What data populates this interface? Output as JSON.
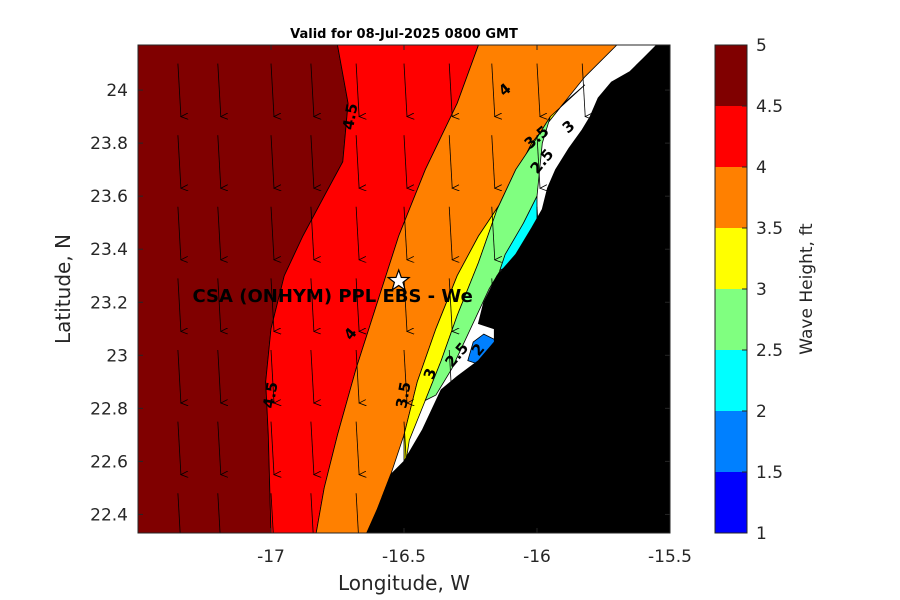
{
  "chart_data": {
    "type": "heatmap",
    "title": "Valid for 08-Jul-2025 0800 GMT",
    "xlabel": "Longitude, W",
    "ylabel": "Latitude, N",
    "xlim": [
      -17.5,
      -15.5
    ],
    "ylim": [
      22.33,
      24.17
    ],
    "x_ticks": [
      -17,
      -16.5,
      -16,
      -15.5
    ],
    "x_tick_labels": [
      "-17",
      "-16.5",
      "-16",
      "-15.5"
    ],
    "y_ticks": [
      22.4,
      22.6,
      22.8,
      23,
      23.2,
      23.4,
      23.6,
      23.8,
      24
    ],
    "y_tick_labels": [
      "22.4",
      "22.6",
      "22.8",
      "23",
      "23.2",
      "23.4",
      "23.6",
      "23.8",
      "24"
    ],
    "colorbar": {
      "label": "Wave Height, ft",
      "ticks": [
        1,
        1.5,
        2,
        2.5,
        3,
        3.5,
        4,
        4.5,
        5
      ],
      "tick_labels": [
        "1",
        "1.5",
        "2",
        "2.5",
        "3",
        "3.5",
        "4",
        "4.5",
        "5"
      ],
      "colors": [
        "#0000ff",
        "#0080ff",
        "#00ffff",
        "#80ff80",
        "#ffff00",
        "#ff8000",
        "#ff0000",
        "#800000"
      ]
    },
    "bands": [
      {
        "range": [
          4.5,
          5.0
        ],
        "color": "#800000",
        "polygon": [
          [
            -17.5,
            22.33
          ],
          [
            -17.5,
            24.17
          ],
          [
            -16.75,
            24.17
          ],
          [
            -16.71,
            23.95
          ],
          [
            -16.73,
            23.73
          ],
          [
            -16.8,
            23.6
          ],
          [
            -16.88,
            23.45
          ],
          [
            -16.95,
            23.3
          ],
          [
            -17.0,
            23.1
          ],
          [
            -17.02,
            22.9
          ],
          [
            -17.01,
            22.7
          ],
          [
            -17.0,
            22.33
          ]
        ]
      },
      {
        "range": [
          4.0,
          4.5
        ],
        "color": "#ff0000",
        "polygon": [
          [
            -17.0,
            22.33
          ],
          [
            -17.01,
            22.7
          ],
          [
            -17.02,
            22.9
          ],
          [
            -17.0,
            23.1
          ],
          [
            -16.95,
            23.3
          ],
          [
            -16.88,
            23.45
          ],
          [
            -16.8,
            23.6
          ],
          [
            -16.73,
            23.73
          ],
          [
            -16.71,
            23.95
          ],
          [
            -16.75,
            24.17
          ],
          [
            -16.22,
            24.17
          ],
          [
            -16.3,
            23.95
          ],
          [
            -16.42,
            23.7
          ],
          [
            -16.52,
            23.45
          ],
          [
            -16.6,
            23.2
          ],
          [
            -16.68,
            22.95
          ],
          [
            -16.75,
            22.7
          ],
          [
            -16.8,
            22.5
          ],
          [
            -16.83,
            22.33
          ]
        ]
      },
      {
        "range": [
          3.5,
          4.0
        ],
        "color": "#ff8000",
        "polygon": [
          [
            -16.83,
            22.33
          ],
          [
            -16.8,
            22.5
          ],
          [
            -16.75,
            22.7
          ],
          [
            -16.68,
            22.95
          ],
          [
            -16.6,
            23.2
          ],
          [
            -16.52,
            23.45
          ],
          [
            -16.42,
            23.7
          ],
          [
            -16.3,
            23.95
          ],
          [
            -16.22,
            24.17
          ],
          [
            -15.7,
            24.17
          ],
          [
            -15.82,
            24.05
          ],
          [
            -15.9,
            23.95
          ],
          [
            -16.02,
            23.8
          ],
          [
            -16.12,
            23.6
          ],
          [
            -16.22,
            23.45
          ],
          [
            -16.3,
            23.3
          ],
          [
            -16.38,
            23.1
          ],
          [
            -16.45,
            22.9
          ],
          [
            -16.5,
            22.7
          ],
          [
            -16.55,
            22.55
          ],
          [
            -16.6,
            22.42
          ],
          [
            -16.64,
            22.33
          ]
        ]
      },
      {
        "range": [
          3.0,
          3.5
        ],
        "color": "#ffff00",
        "polygon": [
          [
            -16.5,
            22.55
          ],
          [
            -16.5,
            22.7
          ],
          [
            -16.45,
            22.9
          ],
          [
            -16.38,
            23.1
          ],
          [
            -16.3,
            23.3
          ],
          [
            -16.22,
            23.45
          ],
          [
            -16.12,
            23.6
          ],
          [
            -16.02,
            23.8
          ],
          [
            -15.9,
            23.95
          ],
          [
            -15.82,
            24.02
          ],
          [
            -15.95,
            23.9
          ],
          [
            -16.0,
            23.82
          ],
          [
            -16.08,
            23.7
          ],
          [
            -16.15,
            23.55
          ],
          [
            -16.22,
            23.35
          ],
          [
            -16.3,
            23.15
          ],
          [
            -16.36,
            22.98
          ],
          [
            -16.42,
            22.83
          ],
          [
            -16.48,
            22.68
          ]
        ]
      },
      {
        "range": [
          2.5,
          3.0
        ],
        "color": "#80ff80",
        "polygon": [
          [
            -16.42,
            22.83
          ],
          [
            -16.36,
            22.98
          ],
          [
            -16.3,
            23.15
          ],
          [
            -16.22,
            23.35
          ],
          [
            -16.15,
            23.55
          ],
          [
            -16.08,
            23.7
          ],
          [
            -16.0,
            23.82
          ],
          [
            -15.95,
            23.9
          ],
          [
            -15.98,
            23.8
          ],
          [
            -16.0,
            23.6
          ],
          [
            -16.05,
            23.5
          ],
          [
            -16.12,
            23.35
          ],
          [
            -16.18,
            23.25
          ],
          [
            -16.25,
            23.1
          ],
          [
            -16.32,
            22.95
          ],
          [
            -16.38,
            22.85
          ]
        ]
      },
      {
        "range": [
          2.0,
          2.5
        ],
        "color": "#00ffff",
        "polygon": [
          [
            -16.0,
            23.6
          ],
          [
            -16.0,
            23.45
          ],
          [
            -16.08,
            23.35
          ],
          [
            -16.14,
            23.32
          ],
          [
            -16.12,
            23.38
          ],
          [
            -16.05,
            23.5
          ]
        ]
      },
      {
        "range": [
          1.5,
          2.0
        ],
        "color": "#0080ff",
        "polygon": [
          [
            -16.26,
            22.98
          ],
          [
            -16.2,
            22.96
          ],
          [
            -16.16,
            23.0
          ],
          [
            -16.16,
            23.06
          ],
          [
            -16.2,
            23.08
          ],
          [
            -16.24,
            23.05
          ]
        ]
      },
      {
        "range": [
          1.0,
          1.5
        ],
        "color": "#0000ff",
        "polygon": [
          [
            -16.25,
            22.93
          ],
          [
            -16.19,
            22.95
          ],
          [
            -16.16,
            22.98
          ],
          [
            -16.2,
            22.98
          ],
          [
            -16.24,
            22.96
          ]
        ]
      }
    ],
    "land": [
      [
        -16.64,
        22.33
      ],
      [
        -16.6,
        22.42
      ],
      [
        -16.55,
        22.55
      ],
      [
        -16.5,
        22.6
      ],
      [
        -16.43,
        22.72
      ],
      [
        -16.36,
        22.87
      ],
      [
        -16.3,
        22.92
      ],
      [
        -16.22,
        22.98
      ],
      [
        -16.16,
        23.05
      ],
      [
        -16.16,
        23.1
      ],
      [
        -16.22,
        23.12
      ],
      [
        -16.2,
        23.2
      ],
      [
        -16.15,
        23.3
      ],
      [
        -16.08,
        23.38
      ],
      [
        -16.02,
        23.48
      ],
      [
        -15.98,
        23.55
      ],
      [
        -15.96,
        23.63
      ],
      [
        -15.93,
        23.7
      ],
      [
        -15.88,
        23.78
      ],
      [
        -15.83,
        23.85
      ],
      [
        -15.8,
        23.9
      ],
      [
        -15.77,
        23.97
      ],
      [
        -15.72,
        24.03
      ],
      [
        -15.65,
        24.07
      ],
      [
        -15.6,
        24.12
      ],
      [
        -15.55,
        24.17
      ],
      [
        -15.5,
        24.17
      ],
      [
        -15.5,
        22.33
      ]
    ],
    "contour_labels": [
      {
        "text": "4.5",
        "x": -16.7,
        "y": 23.9,
        "angle": -80
      },
      {
        "text": "4.5",
        "x": -17.0,
        "y": 22.85,
        "angle": -80
      },
      {
        "text": "4",
        "x": -16.12,
        "y": 24.0,
        "angle": -40
      },
      {
        "text": "4",
        "x": -16.7,
        "y": 23.08,
        "angle": -50
      },
      {
        "text": "3.5",
        "x": -16.0,
        "y": 23.82,
        "angle": -40
      },
      {
        "text": "3",
        "x": -15.88,
        "y": 23.86,
        "angle": -40
      },
      {
        "text": "2.5",
        "x": -15.98,
        "y": 23.73,
        "angle": -50
      },
      {
        "text": "3.5",
        "x": -16.5,
        "y": 22.85,
        "angle": -80
      },
      {
        "text": "3",
        "x": -16.4,
        "y": 22.93,
        "angle": -70
      },
      {
        "text": "2.5",
        "x": -16.3,
        "y": 23.0,
        "angle": -50
      },
      {
        "text": "2",
        "x": -16.22,
        "y": 23.02,
        "angle": -50
      }
    ],
    "wind_arrows": {
      "direction": "south",
      "x": [
        -17.35,
        -17.2,
        -17.0,
        -16.85,
        -16.68,
        -16.5,
        -16.33,
        -16.17,
        -16.0,
        -15.83
      ],
      "y": [
        24.1,
        23.83,
        23.56,
        23.29,
        23.02,
        22.75,
        22.48
      ]
    },
    "station": {
      "name": "CSA (ONHYM) PPL EBS  - We",
      "marker": "star",
      "x": -16.52,
      "y": 23.28
    }
  }
}
